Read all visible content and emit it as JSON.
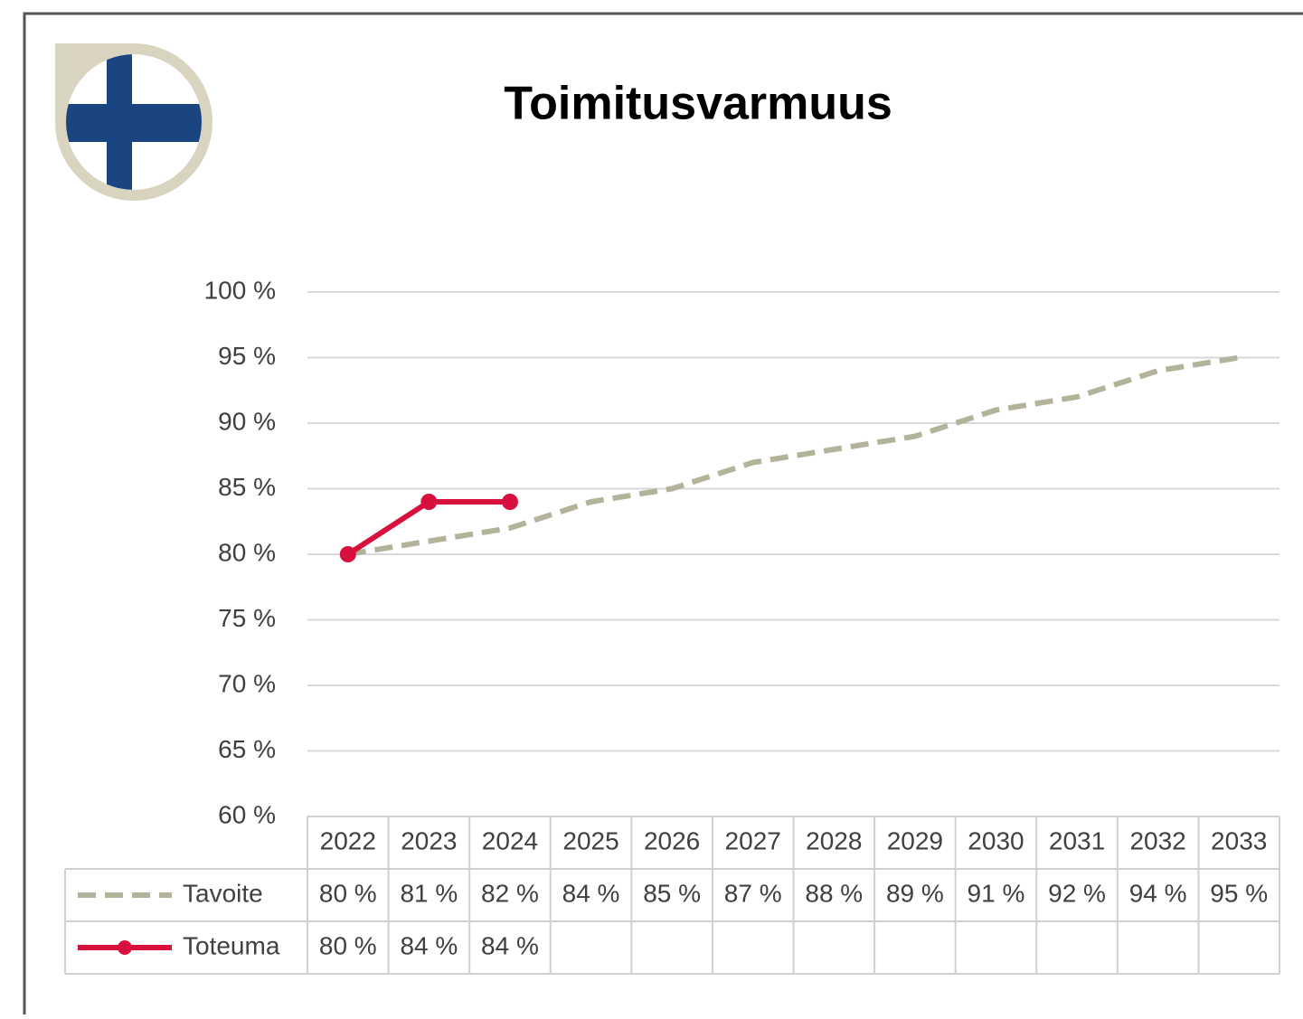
{
  "chart_data": {
    "type": "line",
    "title": "Toimitusvarmuus",
    "categories": [
      "2022",
      "2023",
      "2024",
      "2025",
      "2026",
      "2027",
      "2028",
      "2029",
      "2030",
      "2031",
      "2032",
      "2033"
    ],
    "series": [
      {
        "name": "Tavoite",
        "color": "#b3b39b",
        "dashed": true,
        "values": [
          80,
          81,
          82,
          84,
          85,
          87,
          88,
          89,
          91,
          92,
          94,
          95
        ],
        "value_labels": [
          "80 %",
          "81 %",
          "82 %",
          "84 %",
          "85 %",
          "87 %",
          "88 %",
          "89 %",
          "91 %",
          "92 %",
          "94 %",
          "95 %"
        ]
      },
      {
        "name": "Toteuma",
        "color": "#d7103d",
        "markers": true,
        "values": [
          80,
          84,
          84,
          null,
          null,
          null,
          null,
          null,
          null,
          null,
          null,
          null
        ],
        "value_labels": [
          "80 %",
          "84 %",
          "84 %",
          null,
          null,
          null,
          null,
          null,
          null,
          null,
          null,
          null
        ]
      }
    ],
    "ylim": [
      60,
      100
    ],
    "yticks": [
      {
        "value": 60,
        "label": "60 %"
      },
      {
        "value": 65,
        "label": "65 %"
      },
      {
        "value": 70,
        "label": "70 %"
      },
      {
        "value": 75,
        "label": "75 %"
      },
      {
        "value": 80,
        "label": "80 %"
      },
      {
        "value": 85,
        "label": "85 %"
      },
      {
        "value": 90,
        "label": "90 %"
      },
      {
        "value": 95,
        "label": "95 %"
      },
      {
        "value": 100,
        "label": "100 %"
      }
    ],
    "grid": true
  }
}
